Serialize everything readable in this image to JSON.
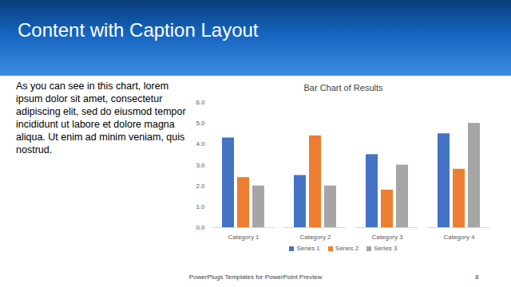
{
  "slide": {
    "title": "Content with Caption Layout",
    "caption": "As you can see in this chart, lorem ipsum dolor sit amet, consectetur adipiscing elit, sed do eiusmod tempor incididunt ut labore et dolore magna aliqua. Ut enim ad minim veniam, quis nostrud.",
    "footer": "PowerPlugs Templates for PowerPoint Preview",
    "page_number": 8
  },
  "chart_data": {
    "type": "bar",
    "title": "Bar Chart of Results",
    "categories": [
      "Category 1",
      "Category 2",
      "Category 3",
      "Category 4"
    ],
    "series": [
      {
        "name": "Series 1",
        "color": "#4472c4",
        "values": [
          4.3,
          2.5,
          3.5,
          4.5
        ]
      },
      {
        "name": "Series 2",
        "color": "#ed7d31",
        "values": [
          2.4,
          4.4,
          1.8,
          2.8
        ]
      },
      {
        "name": "Series 3",
        "color": "#a5a5a5",
        "values": [
          2,
          2,
          3,
          5
        ]
      }
    ],
    "ylim": [
      0,
      6
    ],
    "yticks": [
      0,
      1,
      2,
      3,
      4,
      5,
      6
    ],
    "grid": false,
    "legend": "bottom"
  }
}
